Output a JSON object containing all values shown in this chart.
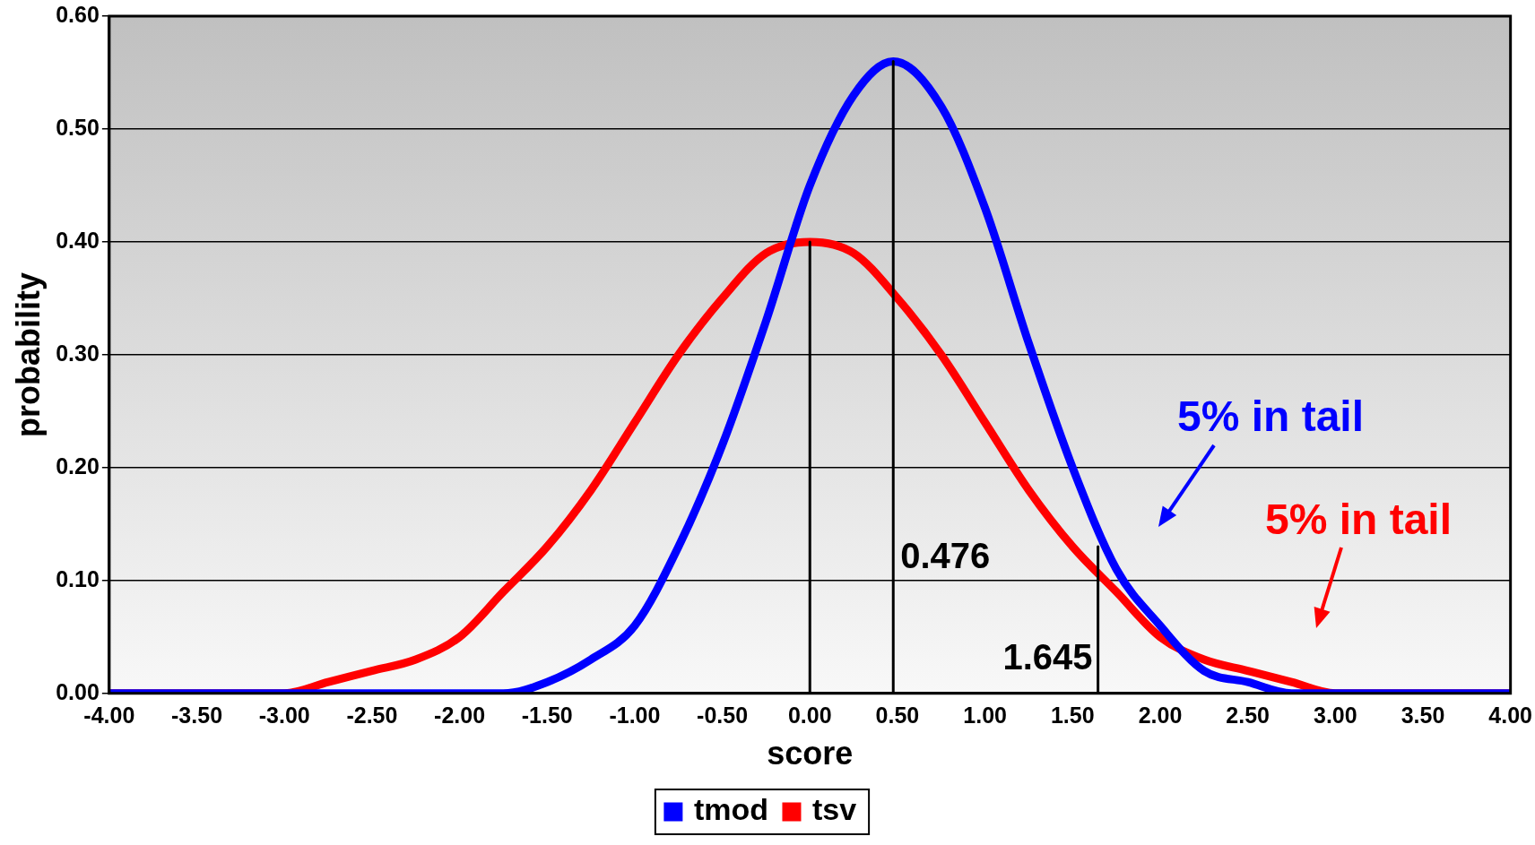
{
  "chart_data": {
    "type": "line",
    "xlabel": "score",
    "ylabel": "probability",
    "xlim": [
      -4,
      4
    ],
    "ylim": [
      0,
      0.6
    ],
    "xticks": [
      {
        "value": -4,
        "label": "-4.00"
      },
      {
        "value": -3.5,
        "label": "-3.50"
      },
      {
        "value": -3,
        "label": "-3.00"
      },
      {
        "value": -2.5,
        "label": "-2.50"
      },
      {
        "value": -2,
        "label": "-2.00"
      },
      {
        "value": -1.5,
        "label": "-1.50"
      },
      {
        "value": -1,
        "label": "-1.00"
      },
      {
        "value": -0.5,
        "label": "-0.50"
      },
      {
        "value": 0,
        "label": "0.00"
      },
      {
        "value": 0.5,
        "label": "0.50"
      },
      {
        "value": 1,
        "label": "1.00"
      },
      {
        "value": 1.5,
        "label": "1.50"
      },
      {
        "value": 2,
        "label": "2.00"
      },
      {
        "value": 2.5,
        "label": "2.50"
      },
      {
        "value": 3,
        "label": "3.00"
      },
      {
        "value": 3.5,
        "label": "3.50"
      },
      {
        "value": 4,
        "label": "4.00"
      }
    ],
    "yticks": [
      {
        "value": 0,
        "label": "0.00"
      },
      {
        "value": 0.1,
        "label": "0.10"
      },
      {
        "value": 0.2,
        "label": "0.20"
      },
      {
        "value": 0.3,
        "label": "0.30"
      },
      {
        "value": 0.4,
        "label": "0.40"
      },
      {
        "value": 0.5,
        "label": "0.50"
      },
      {
        "value": 0.6,
        "label": "0.60"
      }
    ],
    "grid": "y",
    "legend": "bottom",
    "series": [
      {
        "name": "tmod",
        "color": "#0000ff",
        "x": [
          -4,
          -3.5,
          -3,
          -2.5,
          -2,
          -1.75,
          -1.5,
          -1.25,
          -1,
          -0.75,
          -0.5,
          -0.25,
          0,
          0.25,
          0.476,
          0.75,
          1,
          1.25,
          1.5,
          1.75,
          2,
          2.25,
          2.5,
          2.75,
          3,
          3.5,
          4
        ],
        "values": [
          0,
          0,
          0,
          0,
          0,
          0,
          0.01,
          0.03,
          0.06,
          0.13,
          0.22,
          0.33,
          0.45,
          0.53,
          0.56,
          0.52,
          0.43,
          0.31,
          0.2,
          0.11,
          0.06,
          0.02,
          0.01,
          0,
          0,
          0,
          0
        ]
      },
      {
        "name": "tsv",
        "color": "#ff0000",
        "x": [
          -4,
          -3.5,
          -3,
          -2.75,
          -2.5,
          -2.25,
          -2,
          -1.75,
          -1.5,
          -1.25,
          -1,
          -0.75,
          -0.5,
          -0.25,
          0,
          0.25,
          0.5,
          0.75,
          1,
          1.25,
          1.5,
          1.75,
          2,
          2.25,
          2.5,
          2.75,
          3,
          3.5,
          4
        ],
        "values": [
          0,
          0,
          0,
          0.01,
          0.02,
          0.03,
          0.05,
          0.09,
          0.13,
          0.18,
          0.24,
          0.3,
          0.35,
          0.39,
          0.4,
          0.39,
          0.35,
          0.3,
          0.24,
          0.18,
          0.13,
          0.09,
          0.05,
          0.03,
          0.02,
          0.01,
          0,
          0,
          0
        ]
      },
      {
        "color": "#000000",
        "x": [
          0,
          0
        ],
        "values": [
          0,
          0.4
        ]
      },
      {
        "color": "#000000",
        "x": [
          0.476,
          0.476
        ],
        "values": [
          0,
          0.56
        ]
      },
      {
        "color": "#000000",
        "x": [
          1.645,
          1.645
        ],
        "values": [
          0,
          0.13
        ]
      }
    ],
    "annotations": [
      {
        "text": "0.476",
        "x": 0.476,
        "y": 0.12
      },
      {
        "text": "1.645",
        "x": 1.645,
        "y": 0.03
      },
      "5% in tail",
      "5% in tail"
    ]
  }
}
